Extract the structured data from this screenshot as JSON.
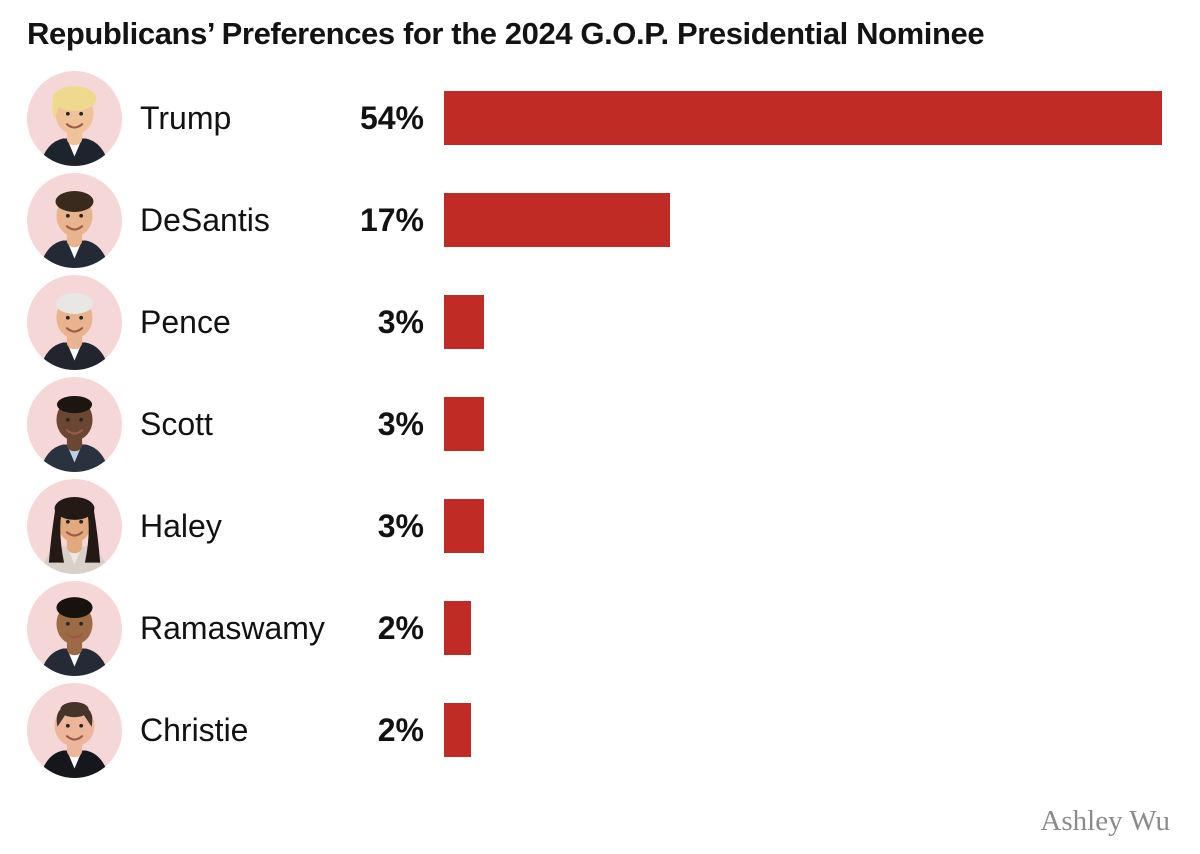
{
  "title": "Republicans’ Preferences for the 2024 G.O.P. Presidential Nominee",
  "credit": "Ashley Wu",
  "colors": {
    "bar": "#c12b26",
    "avatar_bg": "#f6d7d8",
    "title_text": "#131313",
    "name_text": "#121212",
    "credit_text": "#8b8b8b",
    "background": "#ffffff"
  },
  "chart_data": {
    "type": "bar",
    "orientation": "horizontal",
    "title": "Republicans’ Preferences for the 2024 G.O.P. Presidential Nominee",
    "categories": [
      "Trump",
      "DeSantis",
      "Pence",
      "Scott",
      "Haley",
      "Ramaswamy",
      "Christie"
    ],
    "values": [
      54,
      17,
      3,
      3,
      3,
      2,
      2
    ],
    "value_labels": [
      "54%",
      "17%",
      "3%",
      "3%",
      "3%",
      "2%",
      "2%"
    ],
    "unit": "%",
    "xlim": [
      0,
      56
    ],
    "grid": false,
    "legend": false,
    "bar_color": "#c12b26",
    "row_icons": "candidate headshot photos in pink circles",
    "credit": "Ashley Wu"
  },
  "rows": [
    {
      "name": "Trump",
      "pct_label": "54%",
      "value": 54,
      "avatar": {
        "style": "sweep",
        "skin": "#f0c29a",
        "hair": "#eed98f",
        "suit": "#1e242e",
        "shirt": "#ffffff",
        "face_rx": 20
      }
    },
    {
      "name": "DeSantis",
      "pct_label": "17%",
      "value": 17,
      "avatar": {
        "style": "side",
        "skin": "#e8b48e",
        "hair": "#3a2a1d",
        "suit": "#232a35",
        "shirt": "#ffffff",
        "face_rx": 19
      }
    },
    {
      "name": "Pence",
      "pct_label": "3%",
      "value": 3,
      "avatar": {
        "style": "side",
        "skin": "#e9b390",
        "hair": "#e9e7e3",
        "suit": "#22252d",
        "shirt": "#ffffff",
        "face_rx": 19
      }
    },
    {
      "name": "Scott",
      "pct_label": "3%",
      "value": 3,
      "avatar": {
        "style": "short",
        "skin": "#6b4632",
        "hair": "#1c1510",
        "suit": "#2a3240",
        "shirt": "#bcd1e6",
        "face_rx": 19
      }
    },
    {
      "name": "Haley",
      "pct_label": "3%",
      "value": 3,
      "avatar": {
        "style": "long",
        "skin": "#e2a87e",
        "hair": "#241a15",
        "suit": "#d9d0ca",
        "shirt": "#efe7e2",
        "face_rx": 18
      }
    },
    {
      "name": "Ramaswamy",
      "pct_label": "2%",
      "value": 2,
      "avatar": {
        "style": "volume",
        "skin": "#9c6b46",
        "hair": "#17120e",
        "suit": "#252b36",
        "shirt": "#ffffff",
        "face_rx": 19
      }
    },
    {
      "name": "Christie",
      "pct_label": "2%",
      "value": 2,
      "avatar": {
        "style": "receding",
        "skin": "#edb59a",
        "hair": "#463428",
        "suit": "#15171d",
        "shirt": "#ffffff",
        "face_rx": 21
      }
    }
  ]
}
